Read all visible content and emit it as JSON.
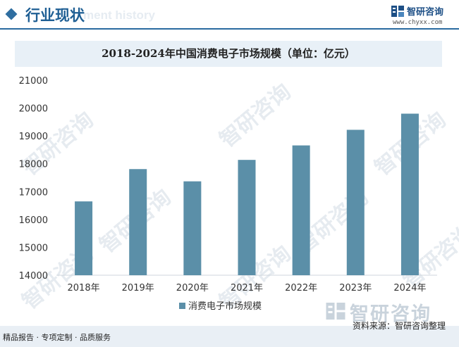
{
  "header": {
    "title": "行业现状",
    "watermark_text": "ment history"
  },
  "brand": {
    "name": "智研咨询",
    "url": "www.chyxx.com",
    "color": "#1d4f86"
  },
  "watermark": {
    "text": "智研咨询"
  },
  "chart_data": {
    "type": "bar",
    "title": "2018-2024年中国消费电子市场规模（单位：亿元）",
    "categories": [
      "2018年",
      "2019年",
      "2020年",
      "2021年",
      "2022年",
      "2023年",
      "2024年"
    ],
    "series": [
      {
        "name": "消费电子市场规模",
        "values": [
          16650,
          17810,
          17370,
          18140,
          18660,
          19220,
          19800
        ],
        "color": "#5b8fa8"
      }
    ],
    "ylim": [
      14000,
      21000
    ],
    "yticks": [
      14000,
      15000,
      16000,
      17000,
      18000,
      19000,
      20000,
      21000
    ],
    "grid": false,
    "legend": "bottom-center"
  },
  "footer": {
    "left": "精品报告 · 专项定制 · 品质服务",
    "source": "资料来源：智研咨询整理",
    "logo_name": "智研咨询"
  }
}
